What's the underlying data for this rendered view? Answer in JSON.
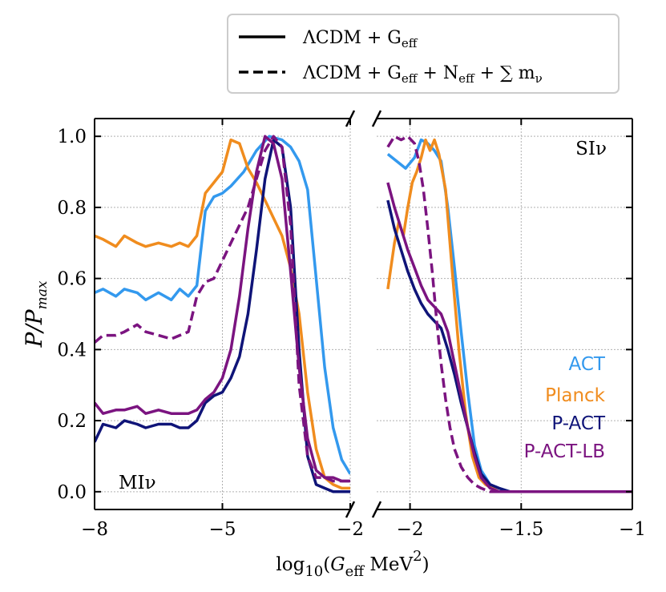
{
  "chart_data": {
    "type": "line",
    "ylabel": "P/P_max",
    "ylabel_display": "P/P",
    "ylabel_sub": "max",
    "xlabel": "log10(G_eff MeV^2)",
    "xlabel_parts": {
      "fn": "log",
      "base": "10",
      "open": "(",
      "sym": "G",
      "sub": "eff",
      "unit": " MeV",
      "exp": "2",
      "close": ")"
    },
    "ylim": [
      -0.05,
      1.05
    ],
    "yticks": [
      0.0,
      0.2,
      0.4,
      0.6,
      0.8,
      1.0
    ],
    "ytick_labels": [
      "0.0",
      "0.2",
      "0.4",
      "0.6",
      "0.8",
      "1.0"
    ],
    "legend": [
      {
        "style": "solid",
        "label": "ΛCDM + G_eff",
        "display": "ΛCDM + G",
        "sub": "eff"
      },
      {
        "style": "dashed",
        "label": "ΛCDM + G_eff + N_eff + Σ m_ν",
        "display_parts": [
          "ΛCDM + G",
          "eff",
          " + N",
          "eff",
          " + ∑ m",
          "ν"
        ]
      }
    ],
    "colors": {
      "ACT": "#3399ee",
      "Planck": "#f08c1e",
      "P-ACT": "#0f1478",
      "P-ACT-LB": "#7b1480"
    },
    "dataset_labels": [
      "ACT",
      "Planck",
      "P-ACT",
      "P-ACT-LB"
    ],
    "panels": [
      {
        "name": "MIν",
        "label": "MIν",
        "xlim": [
          -8,
          -2
        ],
        "xticks": [
          -8,
          -5,
          -2
        ],
        "xtick_labels": [
          "−8",
          "−5",
          "−2"
        ],
        "series": [
          {
            "name": "ACT",
            "style": "solid",
            "x": [
              -8.0,
              -7.8,
              -7.5,
              -7.3,
              -7.0,
              -6.8,
              -6.5,
              -6.2,
              -6.0,
              -5.8,
              -5.6,
              -5.4,
              -5.2,
              -5.0,
              -4.8,
              -4.5,
              -4.2,
              -3.9,
              -3.6,
              -3.4,
              -3.2,
              -3.0,
              -2.8,
              -2.6,
              -2.4,
              -2.2,
              -2.0
            ],
            "y": [
              0.56,
              0.57,
              0.55,
              0.57,
              0.56,
              0.54,
              0.56,
              0.54,
              0.57,
              0.55,
              0.58,
              0.79,
              0.83,
              0.84,
              0.86,
              0.9,
              0.96,
              1.0,
              0.99,
              0.97,
              0.93,
              0.85,
              0.6,
              0.35,
              0.18,
              0.09,
              0.05
            ]
          },
          {
            "name": "Planck",
            "style": "solid",
            "x": [
              -8.0,
              -7.8,
              -7.5,
              -7.3,
              -7.0,
              -6.8,
              -6.5,
              -6.2,
              -6.0,
              -5.8,
              -5.6,
              -5.4,
              -5.2,
              -5.0,
              -4.8,
              -4.6,
              -4.4,
              -4.2,
              -4.0,
              -3.8,
              -3.6,
              -3.4,
              -3.2,
              -3.0,
              -2.8,
              -2.6,
              -2.4,
              -2.2,
              -2.0
            ],
            "y": [
              0.72,
              0.71,
              0.69,
              0.72,
              0.7,
              0.69,
              0.7,
              0.69,
              0.7,
              0.69,
              0.72,
              0.84,
              0.87,
              0.9,
              0.99,
              0.98,
              0.91,
              0.87,
              0.82,
              0.77,
              0.72,
              0.63,
              0.5,
              0.28,
              0.12,
              0.04,
              0.02,
              0.01,
              0.01
            ]
          },
          {
            "name": "P-ACT",
            "style": "solid",
            "x": [
              -8.0,
              -7.8,
              -7.5,
              -7.3,
              -7.0,
              -6.8,
              -6.5,
              -6.2,
              -6.0,
              -5.8,
              -5.6,
              -5.4,
              -5.2,
              -5.0,
              -4.8,
              -4.6,
              -4.4,
              -4.2,
              -4.0,
              -3.8,
              -3.6,
              -3.4,
              -3.2,
              -3.0,
              -2.8,
              -2.6,
              -2.4,
              -2.2,
              -2.0
            ],
            "y": [
              0.14,
              0.19,
              0.18,
              0.2,
              0.19,
              0.18,
              0.19,
              0.19,
              0.18,
              0.18,
              0.2,
              0.25,
              0.27,
              0.28,
              0.32,
              0.38,
              0.5,
              0.68,
              0.88,
              0.99,
              0.97,
              0.8,
              0.4,
              0.1,
              0.02,
              0.01,
              0.0,
              0.0,
              0.0
            ]
          },
          {
            "name": "P-ACT-LB",
            "style": "solid",
            "x": [
              -8.0,
              -7.8,
              -7.5,
              -7.3,
              -7.0,
              -6.8,
              -6.5,
              -6.2,
              -6.0,
              -5.8,
              -5.6,
              -5.4,
              -5.2,
              -5.0,
              -4.8,
              -4.6,
              -4.4,
              -4.2,
              -4.0,
              -3.8,
              -3.6,
              -3.4,
              -3.2,
              -3.0,
              -2.8,
              -2.6,
              -2.4,
              -2.2,
              -2.0
            ],
            "y": [
              0.25,
              0.22,
              0.23,
              0.23,
              0.24,
              0.22,
              0.23,
              0.22,
              0.22,
              0.22,
              0.23,
              0.26,
              0.28,
              0.32,
              0.4,
              0.55,
              0.74,
              0.9,
              1.0,
              0.98,
              0.88,
              0.62,
              0.35,
              0.15,
              0.06,
              0.04,
              0.04,
              0.03,
              0.03
            ]
          },
          {
            "name": "P-ACT-LB",
            "style": "dashed",
            "x": [
              -8.0,
              -7.8,
              -7.5,
              -7.3,
              -7.0,
              -6.8,
              -6.5,
              -6.2,
              -6.0,
              -5.8,
              -5.6,
              -5.4,
              -5.2,
              -5.0,
              -4.8,
              -4.6,
              -4.4,
              -4.2,
              -4.0,
              -3.8,
              -3.6,
              -3.4,
              -3.2,
              -3.0,
              -2.8,
              -2.6,
              -2.4,
              -2.2,
              -2.0
            ],
            "y": [
              0.42,
              0.44,
              0.44,
              0.45,
              0.47,
              0.45,
              0.44,
              0.43,
              0.44,
              0.45,
              0.55,
              0.59,
              0.6,
              0.65,
              0.7,
              0.75,
              0.8,
              0.88,
              0.96,
              1.0,
              0.97,
              0.75,
              0.3,
              0.1,
              0.04,
              0.04,
              0.03,
              0.03,
              0.03
            ]
          }
        ]
      },
      {
        "name": "SIν",
        "label": "SIν",
        "xlim": [
          -2.15,
          -1.0
        ],
        "xticks": [
          -2.0,
          -1.5,
          -1.0
        ],
        "xtick_labels": [
          "−2",
          "−1.5",
          "−1"
        ],
        "series": [
          {
            "name": "ACT",
            "style": "solid",
            "x": [
              -2.1,
              -2.06,
              -2.02,
              -1.98,
              -1.95,
              -1.92,
              -1.89,
              -1.86,
              -1.83,
              -1.8,
              -1.77,
              -1.74,
              -1.71,
              -1.68,
              -1.64,
              -1.6,
              -1.55,
              -1.5,
              -1.4,
              -1.2,
              -1.0
            ],
            "y": [
              0.95,
              0.93,
              0.91,
              0.94,
              0.99,
              0.98,
              0.96,
              0.93,
              0.8,
              0.63,
              0.45,
              0.28,
              0.13,
              0.06,
              0.02,
              0.01,
              0.0,
              0.0,
              0.0,
              0.0,
              0.0
            ]
          },
          {
            "name": "Planck",
            "style": "solid",
            "x": [
              -2.1,
              -2.07,
              -2.05,
              -2.03,
              -2.01,
              -1.99,
              -1.97,
              -1.95,
              -1.93,
              -1.91,
              -1.89,
              -1.87,
              -1.84,
              -1.81,
              -1.78,
              -1.75,
              -1.72,
              -1.69,
              -1.66,
              -1.63,
              -1.6,
              -1.5,
              -1.2,
              -1.0
            ],
            "y": [
              0.57,
              0.7,
              0.76,
              0.72,
              0.8,
              0.87,
              0.9,
              0.94,
              0.99,
              0.96,
              0.99,
              0.95,
              0.85,
              0.62,
              0.4,
              0.22,
              0.1,
              0.04,
              0.02,
              0.01,
              0.0,
              0.0,
              0.0,
              0.0
            ]
          },
          {
            "name": "P-ACT",
            "style": "solid",
            "x": [
              -2.1,
              -2.07,
              -2.04,
              -2.01,
              -1.98,
              -1.95,
              -1.92,
              -1.89,
              -1.86,
              -1.83,
              -1.8,
              -1.77,
              -1.74,
              -1.71,
              -1.68,
              -1.64,
              -1.6,
              -1.55,
              -1.5,
              -1.2,
              -1.0
            ],
            "y": [
              0.82,
              0.74,
              0.68,
              0.62,
              0.57,
              0.53,
              0.5,
              0.48,
              0.46,
              0.4,
              0.33,
              0.25,
              0.18,
              0.11,
              0.05,
              0.02,
              0.01,
              0.0,
              0.0,
              0.0,
              0.0
            ]
          },
          {
            "name": "P-ACT-LB",
            "style": "solid",
            "x": [
              -2.1,
              -2.07,
              -2.04,
              -2.01,
              -1.98,
              -1.95,
              -1.92,
              -1.89,
              -1.86,
              -1.83,
              -1.8,
              -1.77,
              -1.74,
              -1.71,
              -1.68,
              -1.64,
              -1.6,
              -1.55,
              -1.5,
              -1.2,
              -1.0
            ],
            "y": [
              0.87,
              0.8,
              0.74,
              0.68,
              0.63,
              0.58,
              0.54,
              0.52,
              0.5,
              0.45,
              0.36,
              0.27,
              0.18,
              0.1,
              0.04,
              0.01,
              0.0,
              0.0,
              0.0,
              0.0,
              0.0
            ]
          },
          {
            "name": "P-ACT-LB",
            "style": "dashed",
            "x": [
              -2.1,
              -2.07,
              -2.04,
              -2.01,
              -1.98,
              -1.96,
              -1.94,
              -1.92,
              -1.9,
              -1.88,
              -1.86,
              -1.84,
              -1.82,
              -1.8,
              -1.77,
              -1.74,
              -1.71,
              -1.68,
              -1.64,
              -1.6,
              -1.55,
              -1.5,
              -1.2,
              -1.0
            ],
            "y": [
              0.97,
              1.0,
              0.99,
              1.0,
              0.98,
              0.93,
              0.85,
              0.74,
              0.62,
              0.48,
              0.36,
              0.26,
              0.18,
              0.12,
              0.07,
              0.04,
              0.02,
              0.01,
              0.0,
              0.0,
              0.0,
              0.0,
              0.0,
              0.0
            ]
          }
        ]
      }
    ]
  }
}
